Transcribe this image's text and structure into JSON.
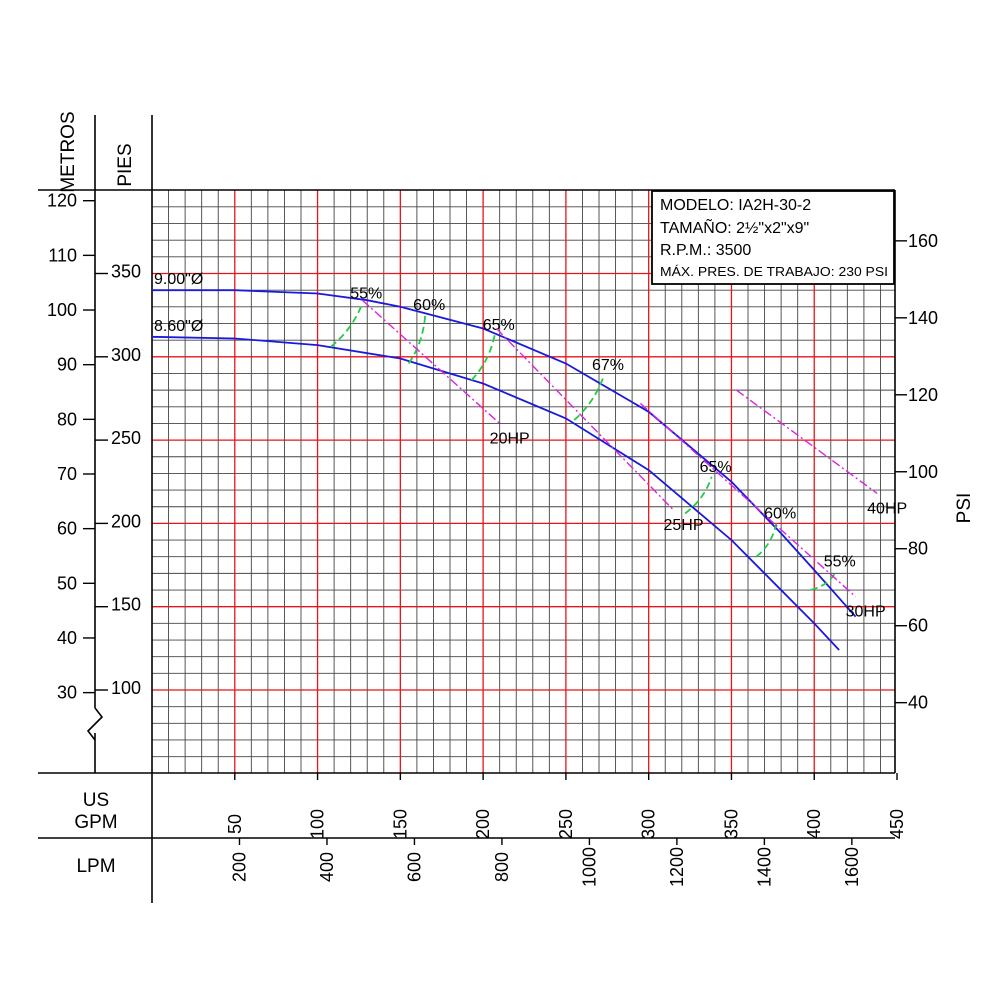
{
  "axes": {
    "left_outer_title": "METROS",
    "left_inner_title": "PIES",
    "right_title": "PSI",
    "bottom_primary_title_line1": "US",
    "bottom_primary_title_line2": "GPM",
    "bottom_secondary_title": "LPM"
  },
  "info_box": {
    "line1": "MODELO: IA2H-30-2",
    "line2": "TAMAÑO: 2½\"x2\"x9\"",
    "line3": "R.P.M.: 3500",
    "line4": "MÁX. PRES. DE TRABAJO: 230 PSI"
  },
  "chart_data": {
    "type": "line",
    "x_axis": {
      "unit": "US GPM",
      "range": [
        0,
        450
      ],
      "ticks": [
        50,
        100,
        150,
        200,
        250,
        300,
        350,
        400,
        450
      ]
    },
    "x_axis_secondary": {
      "unit": "LPM",
      "ticks": [
        200,
        400,
        600,
        800,
        1000,
        1200,
        1400,
        1600
      ]
    },
    "y_axis": {
      "unit": "PIES",
      "range": [
        60,
        410
      ],
      "ticks": [
        100,
        150,
        200,
        250,
        300,
        350
      ]
    },
    "y_axis_secondary_left": {
      "unit": "METROS",
      "ticks": [
        30,
        40,
        50,
        60,
        70,
        80,
        90,
        100,
        110,
        120
      ]
    },
    "y_axis_secondary_right": {
      "unit": "PSI",
      "ticks": [
        40,
        60,
        80,
        100,
        120,
        140,
        160
      ]
    },
    "grid": true,
    "series": [
      {
        "name": "9.00\"Ø",
        "color": "#1a1adc",
        "kind": "head_curve",
        "points": [
          [
            0,
            340
          ],
          [
            50,
            340
          ],
          [
            100,
            338
          ],
          [
            130,
            334
          ],
          [
            150,
            330
          ],
          [
            200,
            317
          ],
          [
            250,
            296
          ],
          [
            300,
            267
          ],
          [
            350,
            225
          ],
          [
            380,
            194
          ],
          [
            400,
            172
          ],
          [
            425,
            144
          ]
        ]
      },
      {
        "name": "8.60\"Ø",
        "color": "#1a1adc",
        "kind": "head_curve",
        "points": [
          [
            0,
            312
          ],
          [
            50,
            311
          ],
          [
            100,
            307
          ],
          [
            150,
            299
          ],
          [
            200,
            284
          ],
          [
            250,
            263
          ],
          [
            300,
            232
          ],
          [
            350,
            190
          ],
          [
            400,
            140
          ],
          [
            415,
            124
          ]
        ]
      },
      {
        "name": "55%",
        "color": "#22cc44",
        "kind": "efficiency",
        "points": [
          [
            108,
            306
          ],
          [
            127,
            332
          ]
        ]
      },
      {
        "name": "60%",
        "color": "#22cc44",
        "kind": "efficiency",
        "points": [
          [
            155,
            296
          ],
          [
            165,
            325
          ]
        ]
      },
      {
        "name": "65%",
        "color": "#22cc44",
        "kind": "efficiency",
        "points": [
          [
            193,
            286
          ],
          [
            207,
            313
          ]
        ]
      },
      {
        "name": "67%",
        "color": "#22cc44",
        "kind": "efficiency",
        "points": [
          [
            255,
            262
          ],
          [
            273,
            289
          ]
        ]
      },
      {
        "name": "65%",
        "color": "#22cc44",
        "kind": "efficiency",
        "points": [
          [
            322,
            206
          ],
          [
            338,
            228
          ]
        ]
      },
      {
        "name": "60%",
        "color": "#22cc44",
        "kind": "efficiency",
        "points": [
          [
            365,
            180
          ],
          [
            377,
            200
          ]
        ]
      },
      {
        "name": "55%",
        "color": "#22cc44",
        "kind": "efficiency",
        "points": [
          [
            398,
            160
          ],
          [
            413,
            171
          ]
        ]
      },
      {
        "name": "20HP",
        "color": "#dd22dd",
        "kind": "power",
        "points": [
          [
            127,
            334
          ],
          [
            210,
            260
          ]
        ]
      },
      {
        "name": "25HP",
        "color": "#dd22dd",
        "kind": "power",
        "points": [
          [
            208,
            317
          ],
          [
            315,
            208
          ]
        ]
      },
      {
        "name": "30HP",
        "color": "#dd22dd",
        "kind": "power",
        "points": [
          [
            295,
            272
          ],
          [
            425,
            156
          ]
        ]
      },
      {
        "name": "40HP",
        "color": "#dd22dd",
        "kind": "power",
        "points": [
          [
            353,
            280
          ],
          [
            438,
            218
          ]
        ]
      }
    ]
  }
}
